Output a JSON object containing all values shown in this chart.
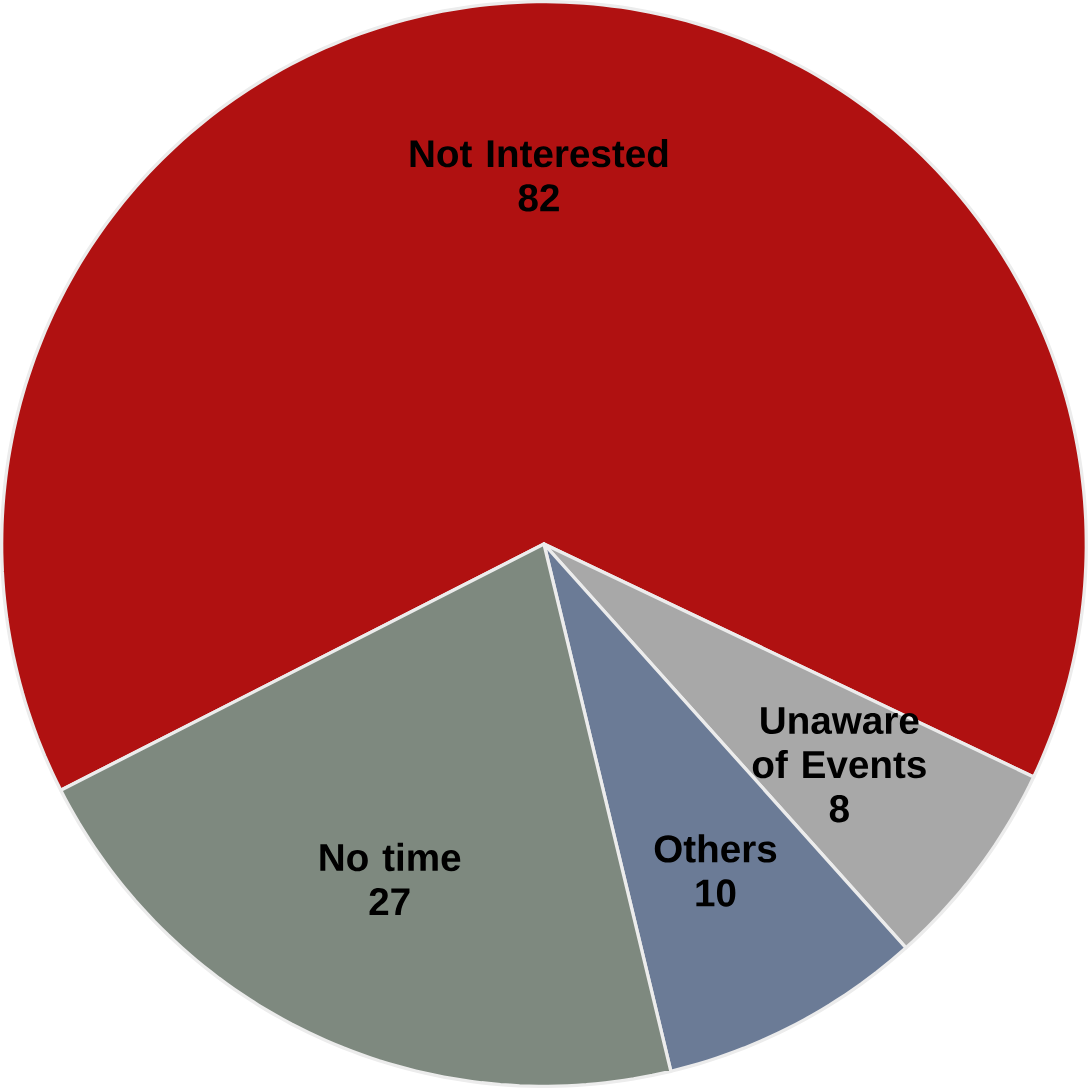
{
  "chart_data": {
    "type": "pie",
    "categories": [
      "Not Interested",
      "Unaware of Events",
      "Others",
      "No time"
    ],
    "values": [
      82,
      8,
      10,
      27
    ],
    "colors": [
      "#b01111",
      "#a8a8a8",
      "#6b7b96",
      "#7e897f"
    ],
    "data_labels": true
  }
}
